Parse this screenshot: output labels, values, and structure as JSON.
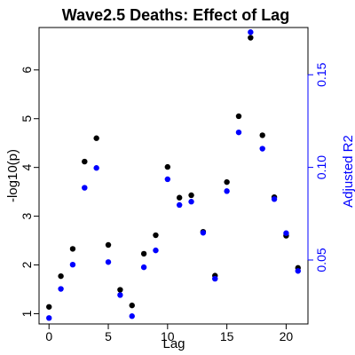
{
  "chart_data": {
    "type": "scatter",
    "title": "Wave2.5 Deaths: Effect of Lag",
    "xlabel": "Lag",
    "ylabel_left": "-log10(p)",
    "ylabel_right": "Adjusted R2",
    "xlim": [
      -0.84,
      21.84
    ],
    "x_ticks": [
      0,
      5,
      10,
      15,
      20
    ],
    "ylim_left": [
      0.79,
      6.87
    ],
    "y_ticks_left": [
      1,
      2,
      3,
      4,
      5,
      6
    ],
    "ylim_right": [
      0.0155,
      0.1755
    ],
    "y_ticks_right": [
      0.05,
      0.1,
      0.15
    ],
    "grid": false,
    "series": [
      {
        "axis": "left",
        "color": "#000000",
        "x": [
          0,
          1,
          2,
          3,
          4,
          5,
          6,
          7,
          8,
          9,
          10,
          11,
          12,
          13,
          14,
          15,
          16,
          17,
          18,
          19,
          20,
          21
        ],
        "values": [
          1.14,
          1.77,
          2.33,
          4.12,
          4.6,
          2.41,
          1.49,
          1.17,
          2.23,
          2.61,
          4.01,
          3.38,
          3.43,
          2.68,
          1.78,
          3.7,
          5.05,
          6.66,
          4.66,
          3.39,
          2.6,
          1.94
        ]
      },
      {
        "axis": "right",
        "color": "#0000ff",
        "x": [
          0,
          1,
          2,
          3,
          4,
          5,
          6,
          7,
          8,
          9,
          10,
          11,
          12,
          13,
          14,
          15,
          16,
          17,
          18,
          19,
          20,
          21
        ],
        "values": [
          0.0187,
          0.0344,
          0.0475,
          0.089,
          0.0997,
          0.0489,
          0.0311,
          0.0197,
          0.0461,
          0.0552,
          0.0936,
          0.0797,
          0.0815,
          0.0647,
          0.0399,
          0.0872,
          0.1189,
          0.173,
          0.1101,
          0.0829,
          0.0645,
          0.0441
        ]
      }
    ]
  }
}
